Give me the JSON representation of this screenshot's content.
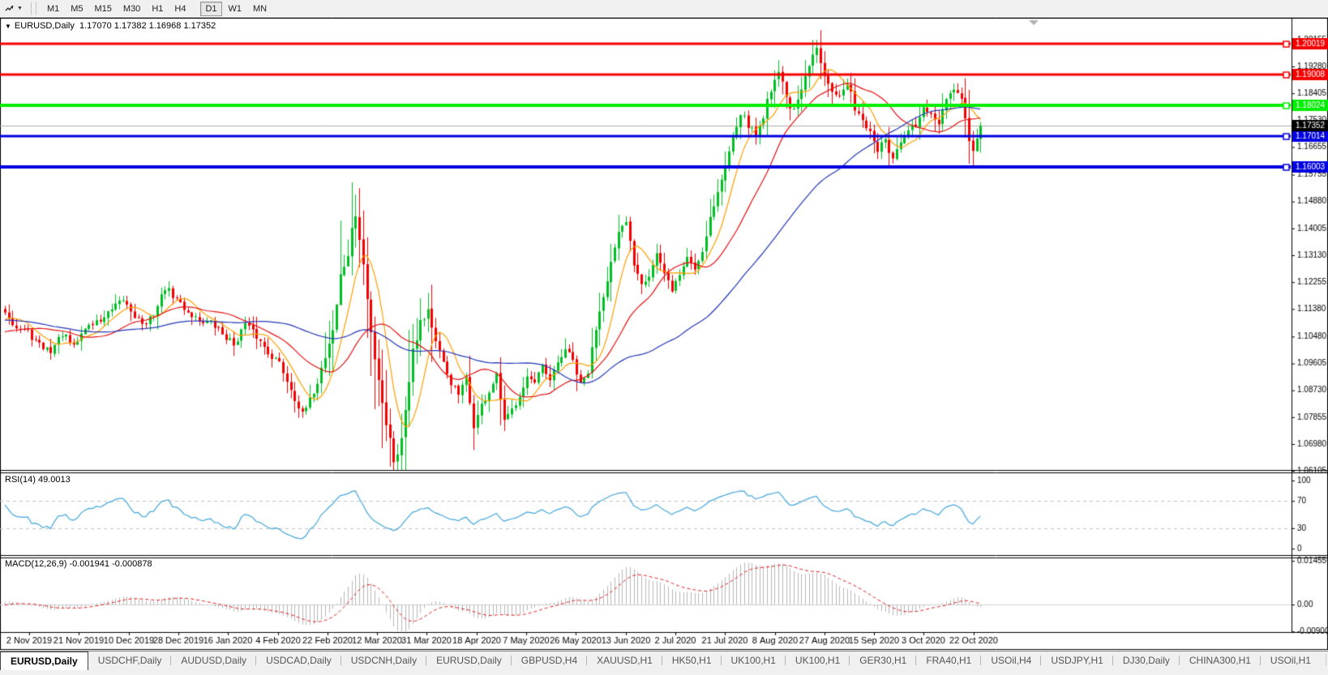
{
  "toolbar": {
    "pointer_icon_glyph": "↯",
    "caret": "▼",
    "timeframes": [
      "M1",
      "M5",
      "M15",
      "M30",
      "H1",
      "H4",
      "D1",
      "W1",
      "MN"
    ],
    "active_timeframe": "D1"
  },
  "chart": {
    "caret": "▼",
    "title_line": "EURUSD,Daily  1.17070 1.17382 1.16968 1.17352"
  },
  "indicators": {
    "rsi_label": "RSI(14) 49.0013",
    "macd_label": "MACD(12,26,9) -0.001941 -0.000878"
  },
  "tabs": {
    "scroll_left": "◄",
    "scroll_right": "►",
    "items": [
      {
        "label": "EURUSD,Daily",
        "active": true
      },
      {
        "label": "USDCHF,Daily",
        "active": false
      },
      {
        "label": "AUDUSD,Daily",
        "active": false
      },
      {
        "label": "USDCAD,Daily",
        "active": false
      },
      {
        "label": "USDCNH,Daily",
        "active": false
      },
      {
        "label": "EURUSD,Daily",
        "active": false
      },
      {
        "label": "GBPUSD,H4",
        "active": false
      },
      {
        "label": "XAUUSD,H1",
        "active": false
      },
      {
        "label": "HK50,H1",
        "active": false
      },
      {
        "label": "UK100,H1",
        "active": false
      },
      {
        "label": "UK100,H1",
        "active": false
      },
      {
        "label": "GER30,H1",
        "active": false
      },
      {
        "label": "FRA40,H1",
        "active": false
      },
      {
        "label": "USOil,H4",
        "active": false
      },
      {
        "label": "USDJPY,H1",
        "active": false
      },
      {
        "label": "DJ30,Daily",
        "active": false
      },
      {
        "label": "CHINA300,H1",
        "active": false
      },
      {
        "label": "USOil,H1",
        "active": false
      }
    ]
  },
  "chart_data": {
    "type": "candlestick",
    "symbol": "EURUSD",
    "timeframe": "Daily",
    "ohlc_display": {
      "open": "1.17070",
      "high": "1.17382",
      "low": "1.16968",
      "close": "1.17352"
    },
    "price_axis_ticks": [
      "1.20155",
      "1.19280",
      "1.18405",
      "1.17530",
      "1.16655",
      "1.15755",
      "1.14880",
      "1.14005",
      "1.13130",
      "1.12255",
      "1.11380",
      "1.10480",
      "1.09605",
      "1.08730",
      "1.07855",
      "1.06980",
      "1.06105"
    ],
    "rsi_axis_ticks": [
      "100",
      "70",
      "30",
      "0"
    ],
    "macd_axis_ticks": [
      "0.014556",
      "0.00",
      "-0.009001"
    ],
    "x_axis_dates": [
      "2 Nov 2019",
      "21 Nov 2019",
      "10 Dec 2019",
      "28 Dec 2019",
      "16 Jan 2020",
      "4 Feb 2020",
      "22 Feb 2020",
      "12 Mar 2020",
      "31 Mar 2020",
      "18 Apr 2020",
      "7 May 2020",
      "26 May 2020",
      "13 Jun 2020",
      "2 Jul 2020",
      "21 Jul 2020",
      "8 Aug 2020",
      "27 Aug 2020",
      "15 Sep 2020",
      "3 Oct 2020",
      "22 Oct 2020"
    ],
    "levels": [
      {
        "price": 1.20019,
        "label": "1.20019",
        "color": "#f50000",
        "width": 3
      },
      {
        "price": 1.19008,
        "label": "1.19008",
        "color": "#f50000",
        "width": 3
      },
      {
        "price": 1.18024,
        "label": "1.18024",
        "color": "#00ee00",
        "width": 4
      },
      {
        "price": 1.17014,
        "label": "1.17014",
        "color": "#0000e0",
        "width": 3
      },
      {
        "price": 1.16003,
        "label": "1.16003",
        "color": "#0000e0",
        "width": 4
      }
    ],
    "current_price": {
      "value": 1.17352,
      "label": "1.17352"
    },
    "rsi": {
      "period": 14,
      "current": 49.0013,
      "overbought": 70,
      "oversold": 30
    },
    "macd": {
      "fast": 12,
      "slow": 26,
      "signal": 9,
      "current_macd": -0.001941,
      "current_signal": -0.000878,
      "axis_max": 0.014556,
      "axis_min": -0.009001
    },
    "moving_averages": [
      {
        "period": 8,
        "color": "#ff9e00"
      },
      {
        "period": 21,
        "color": "#e41111"
      },
      {
        "period": 55,
        "color": "#2337b8"
      }
    ],
    "colors": {
      "bull": "#00bf23",
      "bear": "#f40000",
      "rsi_line": "#43a6dd",
      "macd_hist": "#b6b6b6",
      "macd_signal": "#e02020",
      "current_line": "#ababab",
      "axis": "#000000",
      "level_dash": "#c0c0c0"
    },
    "price_pre_anchors": [
      [
        -60,
        1.1075
      ],
      [
        -48,
        1.114
      ],
      [
        -36,
        1.116
      ],
      [
        -24,
        1.108
      ],
      [
        -12,
        1.102
      ],
      [
        -1,
        1.1125
      ]
    ],
    "price_anchors": [
      [
        0,
        1.1135
      ],
      [
        3,
        1.1078
      ],
      [
        6,
        1.1062
      ],
      [
        9,
        1.1018
      ],
      [
        12,
        1.1002
      ],
      [
        15,
        1.1058
      ],
      [
        18,
        1.1012
      ],
      [
        21,
        1.1078
      ],
      [
        25,
        1.1102
      ],
      [
        28,
        1.1132
      ],
      [
        31,
        1.1168
      ],
      [
        34,
        1.1118
      ],
      [
        37,
        1.1082
      ],
      [
        40,
        1.1148
      ],
      [
        42,
        1.1208
      ],
      [
        45,
        1.1168
      ],
      [
        48,
        1.1128
      ],
      [
        51,
        1.1102
      ],
      [
        54,
        1.1092
      ],
      [
        57,
        1.1058
      ],
      [
        60,
        1.1022
      ],
      [
        63,
        1.1088
      ],
      [
        66,
        1.1048
      ],
      [
        69,
        1.0998
      ],
      [
        72,
        1.0962
      ],
      [
        75,
        1.0878
      ],
      [
        78,
        1.0792
      ],
      [
        80,
        1.0838
      ],
      [
        82,
        1.0902
      ],
      [
        84,
        1.0988
      ],
      [
        86,
        1.1072
      ],
      [
        88,
        1.1242
      ],
      [
        90,
        1.1318
      ],
      [
        92,
        1.1448
      ],
      [
        94,
        1.1278
      ],
      [
        96,
        1.1058
      ],
      [
        98,
        1.0915
      ],
      [
        100,
        1.0768
      ],
      [
        102,
        1.0652
      ],
      [
        104,
        1.0708
      ],
      [
        105,
        1.0818
      ],
      [
        107,
        1.1018
      ],
      [
        109,
        1.1098
      ],
      [
        111,
        1.1138
      ],
      [
        113,
        1.1028
      ],
      [
        115,
        1.0958
      ],
      [
        117,
        1.0898
      ],
      [
        119,
        1.0858
      ],
      [
        121,
        1.0908
      ],
      [
        123,
        1.0758
      ],
      [
        125,
        1.0822
      ],
      [
        127,
        1.0868
      ],
      [
        129,
        1.0918
      ],
      [
        131,
        1.0768
      ],
      [
        133,
        1.0808
      ],
      [
        135,
        1.0862
      ],
      [
        137,
        1.0918
      ],
      [
        139,
        1.0892
      ],
      [
        141,
        1.0948
      ],
      [
        143,
        1.0898
      ],
      [
        145,
        1.0962
      ],
      [
        147,
        1.1008
      ],
      [
        149,
        1.0968
      ],
      [
        151,
        1.0888
      ],
      [
        153,
        1.0932
      ],
      [
        155,
        1.1078
      ],
      [
        157,
        1.1188
      ],
      [
        159,
        1.1288
      ],
      [
        161,
        1.1378
      ],
      [
        163,
        1.1422
      ],
      [
        165,
        1.1288
      ],
      [
        167,
        1.1228
      ],
      [
        169,
        1.1248
      ],
      [
        171,
        1.1318
      ],
      [
        173,
        1.1248
      ],
      [
        175,
        1.1202
      ],
      [
        177,
        1.1248
      ],
      [
        179,
        1.1308
      ],
      [
        181,
        1.1268
      ],
      [
        183,
        1.1328
      ],
      [
        185,
        1.1438
      ],
      [
        187,
        1.1518
      ],
      [
        189,
        1.1598
      ],
      [
        191,
        1.1708
      ],
      [
        193,
        1.1778
      ],
      [
        195,
        1.1738
      ],
      [
        197,
        1.1702
      ],
      [
        199,
        1.1768
      ],
      [
        201,
        1.1858
      ],
      [
        203,
        1.1918
      ],
      [
        205,
        1.1828
      ],
      [
        207,
        1.1778
      ],
      [
        209,
        1.1848
      ],
      [
        211,
        1.1928
      ],
      [
        213,
        1.1988
      ],
      [
        215,
        1.1908
      ],
      [
        217,
        1.1858
      ],
      [
        219,
        1.1828
      ],
      [
        221,
        1.1868
      ],
      [
        223,
        1.1798
      ],
      [
        225,
        1.1758
      ],
      [
        227,
        1.1708
      ],
      [
        229,
        1.1658
      ],
      [
        231,
        1.1678
      ],
      [
        233,
        1.1628
      ],
      [
        235,
        1.1668
      ],
      [
        237,
        1.1718
      ],
      [
        239,
        1.1738
      ],
      [
        241,
        1.1788
      ],
      [
        243,
        1.1768
      ],
      [
        245,
        1.1738
      ],
      [
        247,
        1.1808
      ],
      [
        249,
        1.1858
      ],
      [
        251,
        1.1818
      ],
      [
        252,
        1.1748
      ],
      [
        253,
        1.1688
      ],
      [
        254,
        1.1642
      ],
      [
        255,
        1.1698
      ],
      [
        256,
        1.1735
      ]
    ],
    "spikes": {
      "92": {
        "high": 1.1495
      },
      "102": {
        "low": 1.0636
      },
      "214": {
        "high": 1.201
      },
      "233": {
        "low": 1.1612
      },
      "254": {
        "low": 1.1608
      }
    },
    "y_range": [
      1.06133,
      1.20837
    ],
    "legend_position": "none",
    "grid": false
  }
}
